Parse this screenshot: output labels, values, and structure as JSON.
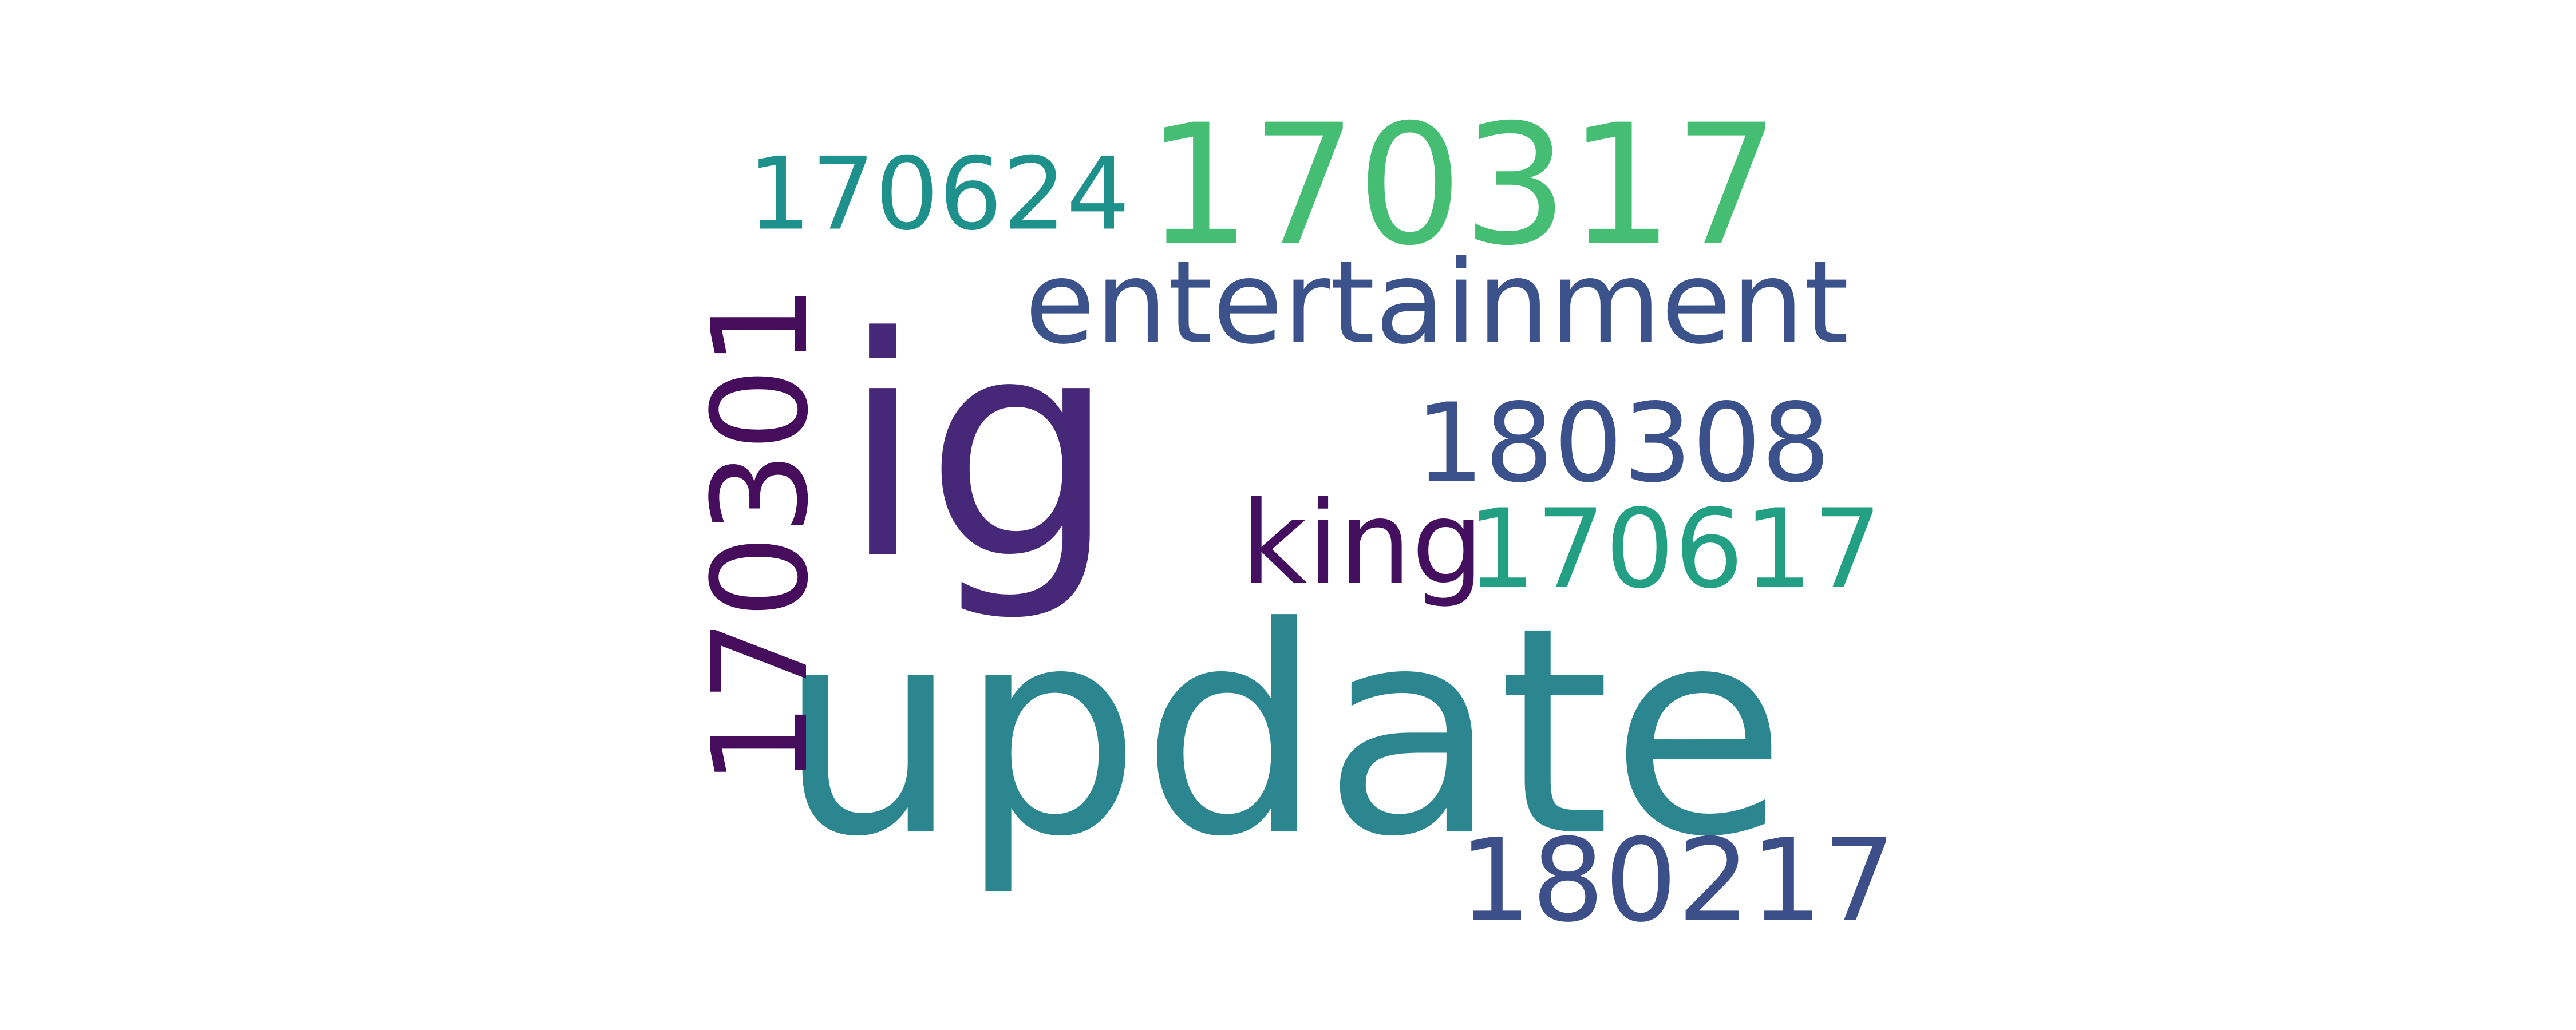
{
  "words": {
    "update": "update",
    "ig": "ig",
    "w170317": "170317",
    "entertainment": "entertainment",
    "w170301": "170301",
    "w170624": "170624",
    "w180308": "180308",
    "king": "king",
    "w170617": "170617",
    "w180217": "180217"
  },
  "colors": {
    "background": "#ffffff",
    "update": "#2b8690",
    "ig": "#472878",
    "w170317": "#45bd73",
    "entertainment": "#3b528b",
    "w170301": "#450d5b",
    "w170624": "#1f918d",
    "w180308": "#3b518b",
    "king": "#450f5f",
    "w170617": "#23a083",
    "w180217": "#3c4f88"
  }
}
